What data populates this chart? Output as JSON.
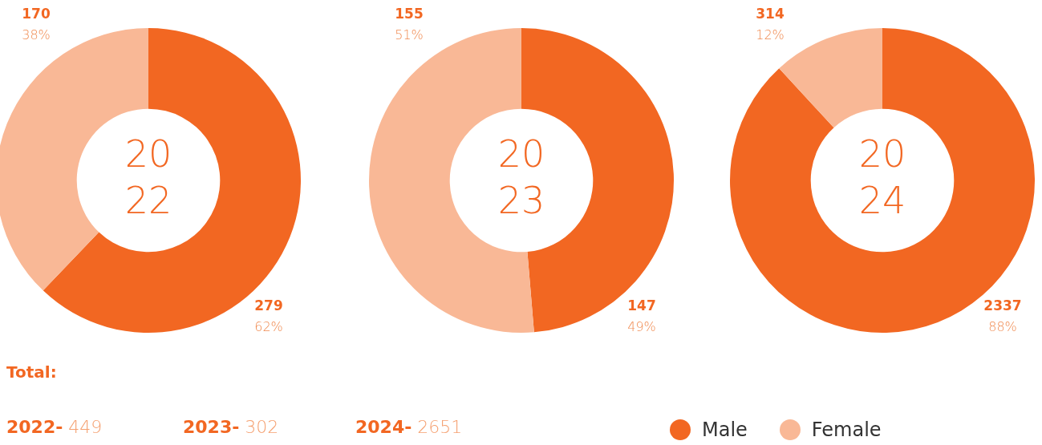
{
  "chart_data": [
    {
      "type": "donut",
      "categories": [
        "Male",
        "Female"
      ],
      "values": [
        279,
        170
      ],
      "colors": [
        "#f26722",
        "#f9b896"
      ],
      "value_labels": [
        "279\n62%",
        "170\n38%"
      ],
      "annotations": [
        "20",
        "22"
      ],
      "legend": "bottom right"
    },
    {
      "type": "donut",
      "categories": [
        null,
        null
      ],
      "values": [
        147,
        155
      ],
      "colors": [
        "#f26722",
        "#f9b896"
      ],
      "value_labels": [
        "147\n49%",
        "155\n51%"
      ],
      "annotations": [
        "20",
        "23"
      ]
    },
    {
      "type": "donut",
      "categories": [
        null,
        null
      ],
      "values": [
        2337,
        314
      ],
      "colors": [
        "#f26722",
        "#f9b896"
      ],
      "value_labels": [
        "2337\n88%",
        "314\n12%"
      ],
      "annotations": [
        "20",
        "24"
      ]
    },
    {
      "type": "other",
      "annotations": [
        "Total:",
        "2022- 449",
        "2023- 302",
        "2024- 2651"
      ]
    }
  ]
}
